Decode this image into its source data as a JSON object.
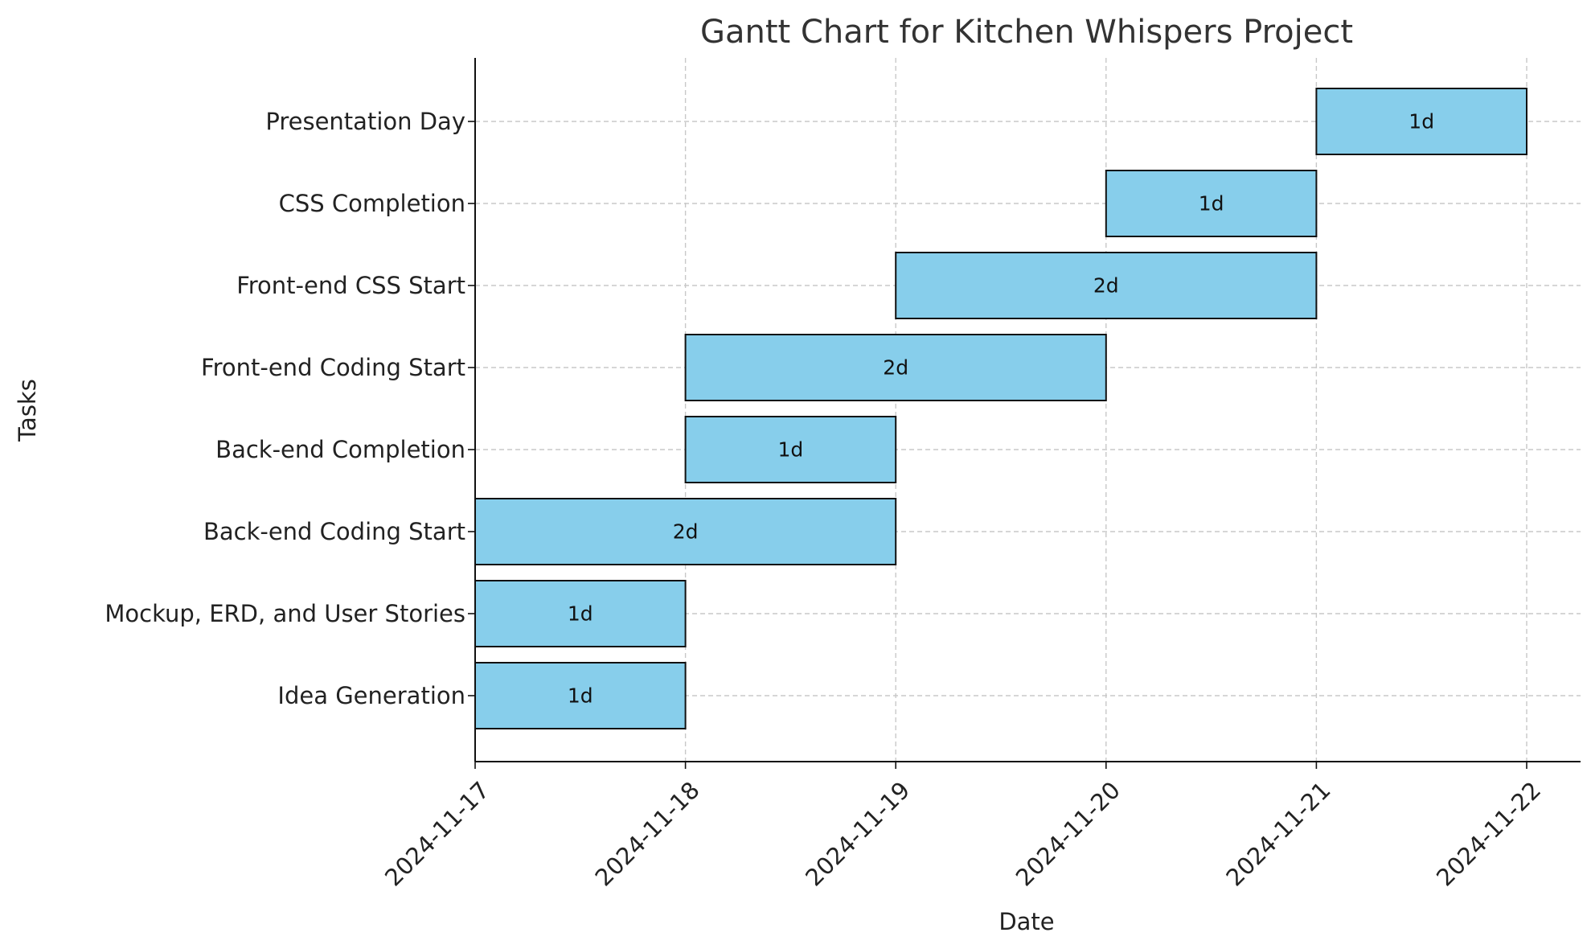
{
  "chart_data": {
    "type": "gantt",
    "title": "Gantt Chart for Kitchen Whispers Project",
    "xlabel": "Date",
    "ylabel": "Tasks",
    "bar_color": "#87ceeb",
    "grid": true,
    "x_ticks": [
      "2024-11-17",
      "2024-11-18",
      "2024-11-19",
      "2024-11-20",
      "2024-11-21",
      "2024-11-22"
    ],
    "tasks": [
      {
        "name": "Idea Generation",
        "start": "2024-11-17",
        "end": "2024-11-18",
        "label": "1d"
      },
      {
        "name": "Mockup, ERD, and User Stories",
        "start": "2024-11-17",
        "end": "2024-11-18",
        "label": "1d"
      },
      {
        "name": "Back-end Coding Start",
        "start": "2024-11-17",
        "end": "2024-11-19",
        "label": "2d"
      },
      {
        "name": "Back-end Completion",
        "start": "2024-11-18",
        "end": "2024-11-19",
        "label": "1d"
      },
      {
        "name": "Front-end Coding Start",
        "start": "2024-11-18",
        "end": "2024-11-20",
        "label": "2d"
      },
      {
        "name": "Front-end CSS Start",
        "start": "2024-11-19",
        "end": "2024-11-21",
        "label": "2d"
      },
      {
        "name": "CSS Completion",
        "start": "2024-11-20",
        "end": "2024-11-21",
        "label": "1d"
      },
      {
        "name": "Presentation Day",
        "start": "2024-11-21",
        "end": "2024-11-22",
        "label": "1d"
      }
    ]
  }
}
